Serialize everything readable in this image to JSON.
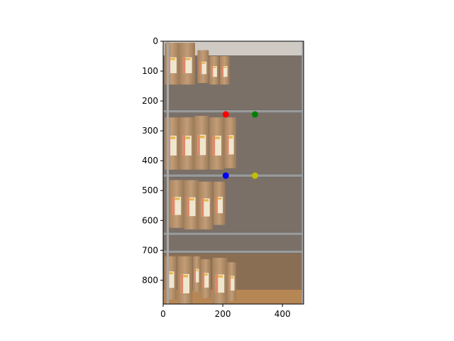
{
  "chart_data": {
    "type": "scatter",
    "background_image": "photo of wire shelving holding brown coffee bags",
    "xlim": [
      0,
      471
    ],
    "ylim": [
      880,
      0
    ],
    "x_ticks": [
      0,
      200,
      400
    ],
    "y_ticks": [
      0,
      100,
      200,
      300,
      400,
      500,
      600,
      700,
      800
    ],
    "grid": false,
    "series": [
      {
        "color": "#ff0000",
        "points": [
          {
            "x": 210,
            "y": 245
          }
        ]
      },
      {
        "color": "#008000",
        "points": [
          {
            "x": 308,
            "y": 245
          }
        ]
      },
      {
        "color": "#0000ff",
        "points": [
          {
            "x": 210,
            "y": 450
          }
        ]
      },
      {
        "color": "#bfbf00",
        "points": [
          {
            "x": 308,
            "y": 450
          }
        ]
      }
    ]
  }
}
